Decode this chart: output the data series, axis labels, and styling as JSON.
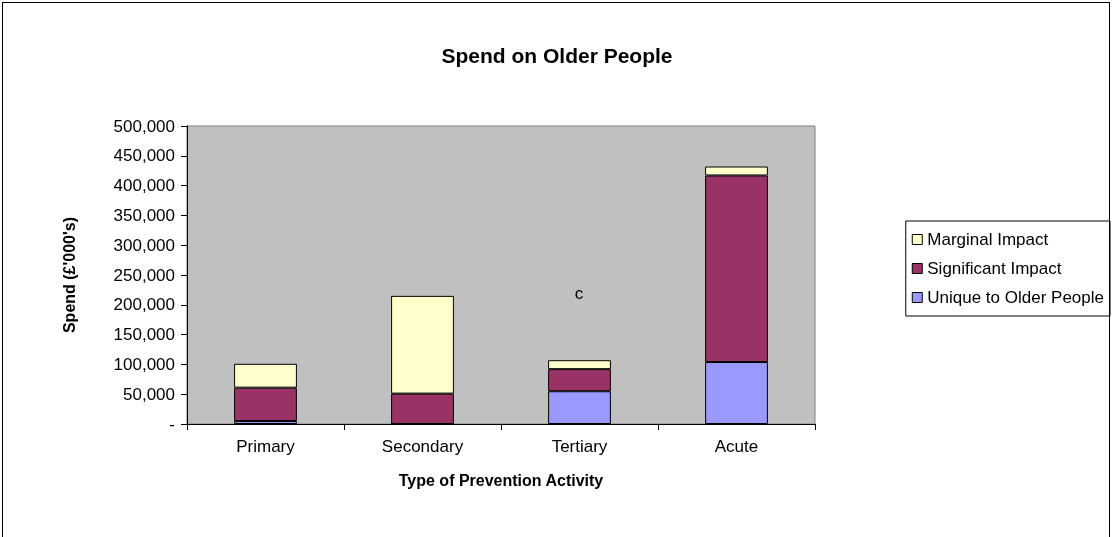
{
  "chart_data": {
    "type": "bar",
    "title": "Spend on Older People",
    "xlabel": "Type of Prevention Activity",
    "ylabel": "Spend (£'000's)",
    "categories": [
      "Primary",
      "Secondary",
      "Tertiary",
      "Acute"
    ],
    "stacked": true,
    "series": [
      {
        "name": "Unique to Older People",
        "color": "#9999ff",
        "values": [
          5000,
          0,
          55000,
          104000
        ]
      },
      {
        "name": "Significant Impact",
        "color": "#993366",
        "values": [
          56000,
          51000,
          37000,
          313000
        ]
      },
      {
        "name": "Marginal Impact",
        "color": "#ffffcc",
        "values": [
          40000,
          164000,
          15000,
          15000
        ]
      }
    ],
    "ylim": [
      0,
      500000
    ],
    "yticks": [
      {
        "value": 0,
        "label": "-"
      },
      {
        "value": 50000,
        "label": "50,000"
      },
      {
        "value": 100000,
        "label": "100,000"
      },
      {
        "value": 150000,
        "label": "150,000"
      },
      {
        "value": 200000,
        "label": "200,000"
      },
      {
        "value": 250000,
        "label": "250,000"
      },
      {
        "value": 300000,
        "label": "300,000"
      },
      {
        "value": 350000,
        "label": "350,000"
      },
      {
        "value": 400000,
        "label": "400,000"
      },
      {
        "value": 450000,
        "label": "450,000"
      },
      {
        "value": 500000,
        "label": "500,000"
      }
    ],
    "grid": false,
    "legend": "right",
    "annotations": [
      "c"
    ]
  }
}
